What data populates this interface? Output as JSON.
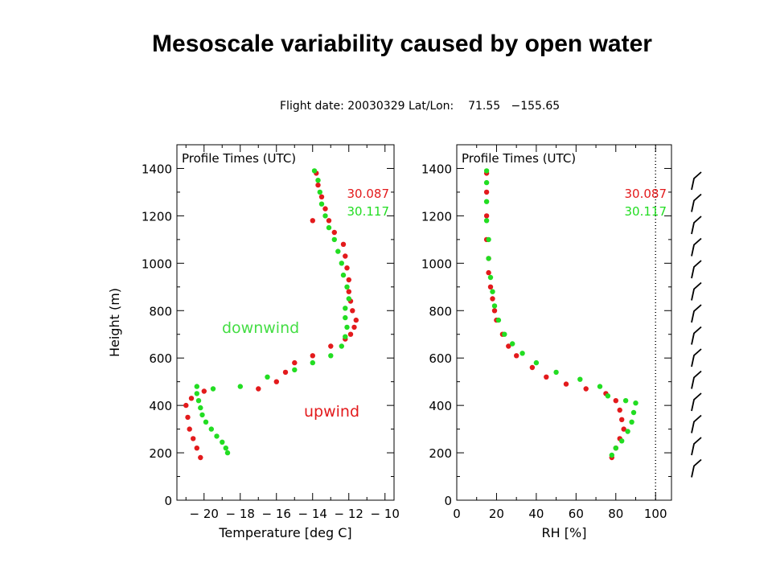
{
  "slide": {
    "title": "Mesoscale variability caused by open water",
    "flight_info": "Flight date: 20030329 Lat/Lon:    71.55   −155.65"
  },
  "colors": {
    "series_087": "#e31a1c",
    "series_117": "#22dd22",
    "axis": "#000000"
  },
  "annotations": {
    "downwind": "downwind",
    "upwind": "upwind"
  },
  "wind_barb_icon": "wind-barb-icon",
  "chart_data": [
    {
      "type": "scatter",
      "title": "",
      "xlabel": "Temperature [deg C]",
      "ylabel": "Height (m)",
      "xlim": [
        -21.5,
        -9.5
      ],
      "ylim": [
        0,
        1500
      ],
      "xticks": [
        "−20",
        "−18",
        "−16",
        "−14",
        "−12",
        "−10"
      ],
      "xtick_values": [
        -20,
        -18,
        -16,
        -14,
        -12,
        -10
      ],
      "yticks": [
        "0",
        "200",
        "400",
        "600",
        "800",
        "1000",
        "1200",
        "1400"
      ],
      "ytick_values": [
        0,
        200,
        400,
        600,
        800,
        1000,
        1200,
        1400
      ],
      "legend_title": "Profile Times (UTC)",
      "legend_placement": "top-right",
      "series": [
        {
          "name": "30.087",
          "color": "#e31a1c",
          "points": [
            [
              -20.2,
              180
            ],
            [
              -20.4,
              220
            ],
            [
              -20.6,
              260
            ],
            [
              -20.8,
              300
            ],
            [
              -20.9,
              350
            ],
            [
              -21.0,
              400
            ],
            [
              -20.7,
              430
            ],
            [
              -20.0,
              460
            ],
            [
              -17.0,
              470
            ],
            [
              -16.0,
              500
            ],
            [
              -15.5,
              540
            ],
            [
              -15.0,
              580
            ],
            [
              -14.0,
              610
            ],
            [
              -13.0,
              650
            ],
            [
              -12.2,
              680
            ],
            [
              -11.9,
              700
            ],
            [
              -11.7,
              730
            ],
            [
              -11.6,
              760
            ],
            [
              -11.8,
              800
            ],
            [
              -11.9,
              840
            ],
            [
              -12.0,
              880
            ],
            [
              -12.0,
              930
            ],
            [
              -12.1,
              980
            ],
            [
              -12.2,
              1030
            ],
            [
              -12.3,
              1080
            ],
            [
              -12.8,
              1130
            ],
            [
              -13.1,
              1180
            ],
            [
              -13.3,
              1230
            ],
            [
              -13.5,
              1280
            ],
            [
              -13.7,
              1330
            ],
            [
              -13.8,
              1380
            ],
            [
              -14.0,
              1180
            ]
          ]
        },
        {
          "name": "30.117",
          "color": "#22dd22",
          "points": [
            [
              -18.7,
              200
            ],
            [
              -18.8,
              220
            ],
            [
              -19.0,
              245
            ],
            [
              -19.3,
              270
            ],
            [
              -19.6,
              300
            ],
            [
              -19.9,
              330
            ],
            [
              -20.1,
              360
            ],
            [
              -20.2,
              390
            ],
            [
              -20.3,
              420
            ],
            [
              -20.4,
              450
            ],
            [
              -20.4,
              480
            ],
            [
              -19.5,
              470
            ],
            [
              -18.0,
              480
            ],
            [
              -16.5,
              520
            ],
            [
              -15.0,
              550
            ],
            [
              -14.0,
              580
            ],
            [
              -13.0,
              610
            ],
            [
              -12.4,
              650
            ],
            [
              -12.2,
              690
            ],
            [
              -12.1,
              730
            ],
            [
              -12.2,
              770
            ],
            [
              -12.2,
              810
            ],
            [
              -12.0,
              850
            ],
            [
              -12.1,
              900
            ],
            [
              -12.3,
              950
            ],
            [
              -12.4,
              1000
            ],
            [
              -12.6,
              1050
            ],
            [
              -12.8,
              1100
            ],
            [
              -13.1,
              1150
            ],
            [
              -13.3,
              1200
            ],
            [
              -13.5,
              1250
            ],
            [
              -13.6,
              1300
            ],
            [
              -13.7,
              1350
            ],
            [
              -13.9,
              1390
            ]
          ]
        }
      ]
    },
    {
      "type": "scatter",
      "title": "",
      "xlabel": "RH [%]",
      "ylabel": "",
      "xlim": [
        0,
        108
      ],
      "ylim": [
        0,
        1500
      ],
      "xticks": [
        "0",
        "20",
        "40",
        "60",
        "80",
        "100"
      ],
      "xtick_values": [
        0,
        20,
        40,
        60,
        80,
        100
      ],
      "yticks": [
        "0",
        "200",
        "400",
        "600",
        "800",
        "1000",
        "1200",
        "1400"
      ],
      "ytick_values": [
        0,
        200,
        400,
        600,
        800,
        1000,
        1200,
        1400
      ],
      "reference_line_x": 100,
      "legend_title": "Profile Times (UTC)",
      "legend_placement": "top-right",
      "series": [
        {
          "name": "30.087",
          "color": "#e31a1c",
          "points": [
            [
              78,
              180
            ],
            [
              80,
              220
            ],
            [
              82,
              260
            ],
            [
              84,
              300
            ],
            [
              83,
              340
            ],
            [
              82,
              380
            ],
            [
              80,
              420
            ],
            [
              75,
              450
            ],
            [
              65,
              470
            ],
            [
              55,
              490
            ],
            [
              45,
              520
            ],
            [
              38,
              560
            ],
            [
              30,
              610
            ],
            [
              26,
              650
            ],
            [
              23,
              700
            ],
            [
              20,
              760
            ],
            [
              19,
              800
            ],
            [
              18,
              850
            ],
            [
              17,
              900
            ],
            [
              16,
              960
            ],
            [
              16,
              1020
            ],
            [
              15,
              1100
            ],
            [
              15,
              1200
            ],
            [
              15,
              1300
            ],
            [
              15,
              1380
            ]
          ]
        },
        {
          "name": "30.117",
          "color": "#22dd22",
          "points": [
            [
              78,
              190
            ],
            [
              80,
              220
            ],
            [
              83,
              250
            ],
            [
              86,
              290
            ],
            [
              88,
              330
            ],
            [
              89,
              370
            ],
            [
              90,
              410
            ],
            [
              85,
              420
            ],
            [
              76,
              440
            ],
            [
              72,
              480
            ],
            [
              62,
              510
            ],
            [
              50,
              540
            ],
            [
              40,
              580
            ],
            [
              33,
              620
            ],
            [
              28,
              660
            ],
            [
              24,
              700
            ],
            [
              21,
              760
            ],
            [
              19,
              820
            ],
            [
              18,
              880
            ],
            [
              17,
              940
            ],
            [
              16,
              1020
            ],
            [
              16,
              1100
            ],
            [
              15,
              1180
            ],
            [
              15,
              1260
            ],
            [
              15,
              1340
            ],
            [
              15,
              1390
            ]
          ]
        }
      ]
    }
  ]
}
